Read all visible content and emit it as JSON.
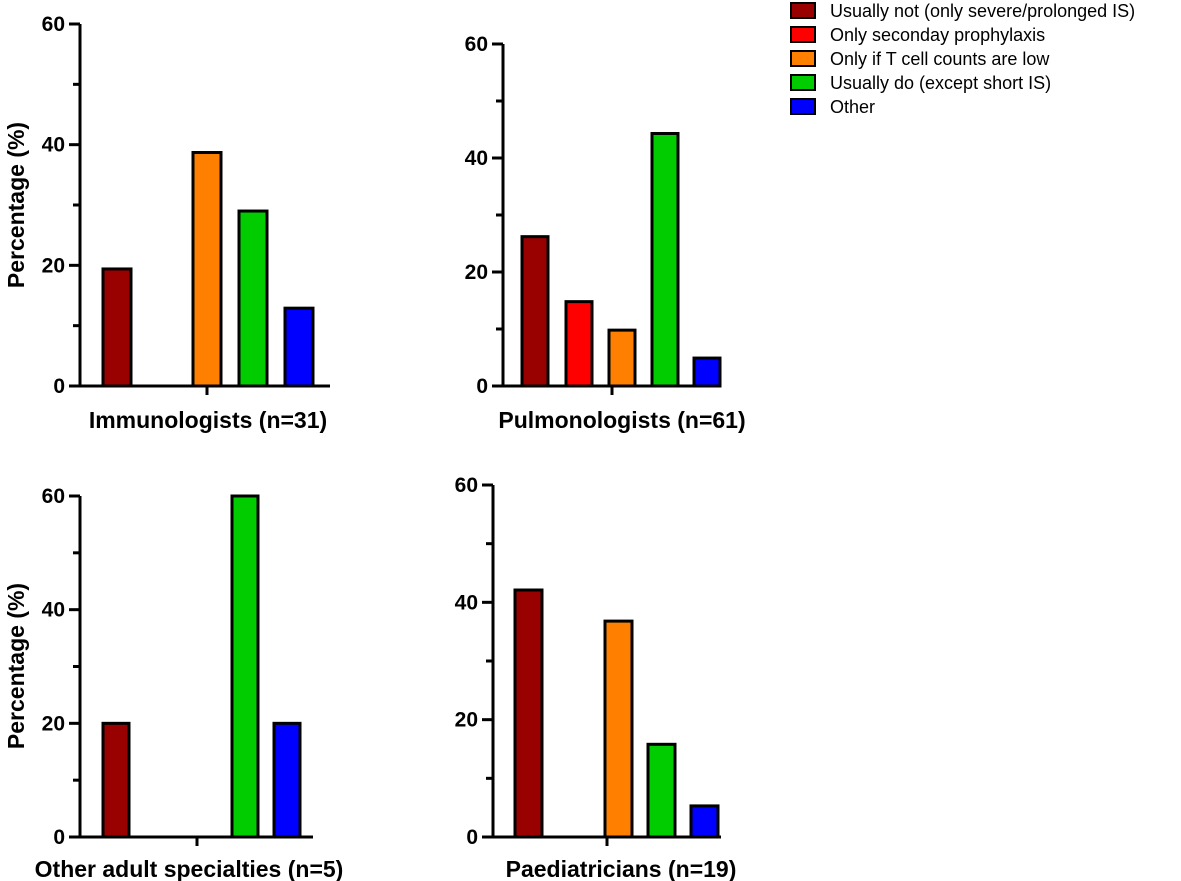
{
  "series_colors": [
    "#990000",
    "#ff0000",
    "#ff8000",
    "#00cc00",
    "#0000ff"
  ],
  "chart_data": [
    {
      "type": "bar",
      "xlabel": "Immunologists (n=31)",
      "ylabel": "Percentage (%)",
      "ylim": [
        0,
        60
      ],
      "yticks": [
        0,
        20,
        40,
        60
      ],
      "categories": [
        "Usually not (only severe/prolonged IS)",
        "Only seconday prophylaxis",
        "Only if T cell counts are low",
        "Usually do (except short IS)",
        "Other"
      ],
      "values": [
        19.4,
        0,
        38.7,
        29.0,
        12.9
      ]
    },
    {
      "type": "bar",
      "xlabel": "Pulmonologists (n=61)",
      "ylabel": "",
      "ylim": [
        0,
        60
      ],
      "yticks": [
        0,
        20,
        40,
        60
      ],
      "categories": [
        "Usually not (only severe/prolonged IS)",
        "Only seconday prophylaxis",
        "Only if T cell counts are low",
        "Usually do (except short IS)",
        "Other"
      ],
      "values": [
        26.2,
        14.8,
        9.8,
        44.3,
        4.9
      ]
    },
    {
      "type": "bar",
      "xlabel": "Other adult specialties (n=5)",
      "ylabel": "Percentage (%)",
      "ylim": [
        0,
        60
      ],
      "yticks": [
        0,
        20,
        40,
        60
      ],
      "categories": [
        "Usually not (only severe/prolonged IS)",
        "Only seconday prophylaxis",
        "Only if T cell counts are low",
        "Usually do (except short IS)",
        "Other"
      ],
      "values": [
        20,
        0,
        0,
        60,
        20
      ]
    },
    {
      "type": "bar",
      "xlabel": "Paediatricians (n=19)",
      "ylabel": "",
      "ylim": [
        0,
        60
      ],
      "yticks": [
        0,
        20,
        40,
        60
      ],
      "categories": [
        "Usually not (only severe/prolonged IS)",
        "Only seconday prophylaxis",
        "Only if T cell counts are low",
        "Usually do (except short IS)",
        "Other"
      ],
      "values": [
        42.1,
        0,
        36.8,
        15.8,
        5.3
      ]
    }
  ],
  "legend": {
    "items": [
      {
        "label": "Usually not (only severe/prolonged IS)",
        "color": "#990000"
      },
      {
        "label": "Only seconday prophylaxis",
        "color": "#ff0000"
      },
      {
        "label": "Only if T cell counts are low",
        "color": "#ff8000"
      },
      {
        "label": "Usually do (except short IS)",
        "color": "#00cc00"
      },
      {
        "label": "Other",
        "color": "#0000ff"
      }
    ]
  }
}
